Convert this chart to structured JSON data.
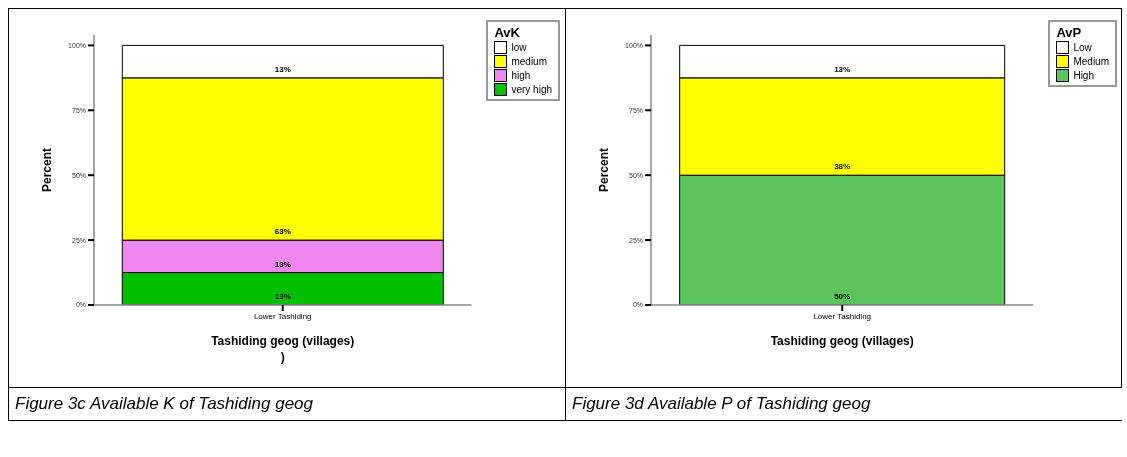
{
  "chart_data": [
    {
      "type": "bar",
      "stacked": true,
      "categories": [
        "Lower Tashiding"
      ],
      "xlabel": "Tashiding geog (villages)\n)",
      "ylabel": "Percent",
      "legend_title": "AvK",
      "legend": "top right",
      "ylim": [
        0,
        104
      ],
      "yticks": [
        {
          "value": 0,
          "label": "0%"
        },
        {
          "value": 25,
          "label": "25%"
        },
        {
          "value": 50,
          "label": "50%"
        },
        {
          "value": 75,
          "label": "75%"
        },
        {
          "value": 100,
          "label": "100%"
        }
      ],
      "annotations": [
        "Figure 3c  Available K of Tashiding geog"
      ],
      "series": [
        {
          "name": "very high",
          "color": "#00c000",
          "values": [
            12.5
          ],
          "value_labels": [
            "13%"
          ]
        },
        {
          "name": "high",
          "color": "#ee88ee",
          "values": [
            12.5
          ],
          "value_labels": [
            "13%"
          ]
        },
        {
          "name": "medium",
          "color": "#ffff00",
          "values": [
            62.5
          ],
          "value_labels": [
            "63%"
          ]
        },
        {
          "name": "low",
          "color": "#ffffff",
          "values": [
            12.5
          ],
          "value_labels": [
            "13%"
          ]
        }
      ]
    },
    {
      "type": "bar",
      "stacked": true,
      "categories": [
        "Lower Tashiding"
      ],
      "xlabel": "Tashiding geog (villages)",
      "ylabel": "Percent",
      "legend_title": "AvP",
      "legend": "top right",
      "ylim": [
        0,
        104
      ],
      "yticks": [
        {
          "value": 0,
          "label": "0%"
        },
        {
          "value": 25,
          "label": "25%"
        },
        {
          "value": 50,
          "label": "50%"
        },
        {
          "value": 75,
          "label": "75%"
        },
        {
          "value": 100,
          "label": "100%"
        }
      ],
      "annotations": [
        "Figure 3d  Available P of Tashiding geog"
      ],
      "series": [
        {
          "name": "High",
          "color": "#5cc45c",
          "values": [
            50
          ],
          "value_labels": [
            "50%"
          ]
        },
        {
          "name": "Medium",
          "color": "#ffff00",
          "values": [
            37.5
          ],
          "value_labels": [
            "38%"
          ]
        },
        {
          "name": "Low",
          "color": "#ffffff",
          "values": [
            12.5
          ],
          "value_labels": [
            "13%"
          ]
        }
      ]
    }
  ]
}
